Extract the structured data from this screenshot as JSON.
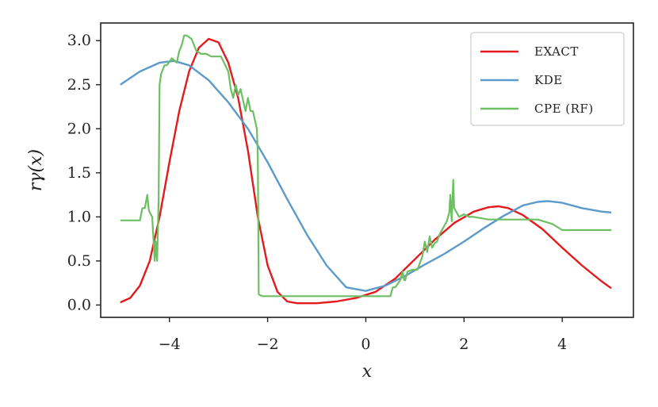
{
  "chart_data": {
    "type": "line",
    "xlabel": "x",
    "ylabel": "rγ(x)",
    "xlim": [
      -5.4,
      5.45
    ],
    "ylim": [
      -0.14,
      3.2
    ],
    "xticks": [
      -4,
      -2,
      0,
      2,
      4
    ],
    "xtick_labels": [
      "−4",
      "−2",
      "0",
      "2",
      "4"
    ],
    "yticks": [
      0.0,
      0.5,
      1.0,
      1.5,
      2.0,
      2.5,
      3.0
    ],
    "ytick_labels": [
      "0.0",
      "0.5",
      "1.0",
      "1.5",
      "2.0",
      "2.5",
      "3.0"
    ],
    "grid": false,
    "legend_position": "top-right",
    "series": [
      {
        "name": "EXACT",
        "color": "#e41a1c",
        "x": [
          -5.0,
          -4.8,
          -4.6,
          -4.4,
          -4.2,
          -4.0,
          -3.8,
          -3.6,
          -3.4,
          -3.2,
          -3.0,
          -2.8,
          -2.6,
          -2.4,
          -2.2,
          -2.0,
          -1.8,
          -1.6,
          -1.4,
          -1.2,
          -1.0,
          -0.6,
          -0.2,
          0.2,
          0.6,
          1.0,
          1.4,
          1.8,
          2.2,
          2.5,
          2.7,
          2.9,
          3.2,
          3.6,
          4.0,
          4.4,
          4.8,
          5.0
        ],
        "y": [
          0.03,
          0.08,
          0.22,
          0.5,
          1.0,
          1.62,
          2.2,
          2.65,
          2.92,
          3.02,
          2.98,
          2.75,
          2.35,
          1.75,
          1.0,
          0.45,
          0.15,
          0.04,
          0.02,
          0.02,
          0.02,
          0.04,
          0.08,
          0.15,
          0.3,
          0.52,
          0.74,
          0.93,
          1.06,
          1.11,
          1.12,
          1.1,
          1.02,
          0.86,
          0.65,
          0.45,
          0.27,
          0.19
        ]
      },
      {
        "name": "KDE",
        "color": "#5b9ac9",
        "x": [
          -5.0,
          -4.6,
          -4.2,
          -3.9,
          -3.6,
          -3.2,
          -2.8,
          -2.4,
          -2.0,
          -1.6,
          -1.2,
          -0.8,
          -0.4,
          0.0,
          0.4,
          0.8,
          1.2,
          1.6,
          2.0,
          2.4,
          2.8,
          3.2,
          3.5,
          3.7,
          4.0,
          4.4,
          4.8,
          5.0
        ],
        "y": [
          2.5,
          2.65,
          2.75,
          2.77,
          2.72,
          2.55,
          2.3,
          2.0,
          1.62,
          1.2,
          0.8,
          0.45,
          0.2,
          0.16,
          0.22,
          0.33,
          0.46,
          0.58,
          0.72,
          0.87,
          1.01,
          1.13,
          1.17,
          1.18,
          1.16,
          1.1,
          1.06,
          1.05
        ]
      },
      {
        "name": "CPE (RF)",
        "color": "#6dbf64",
        "x": [
          -5.0,
          -4.6,
          -4.55,
          -4.5,
          -4.45,
          -4.42,
          -4.4,
          -4.35,
          -4.32,
          -4.3,
          -4.28,
          -4.25,
          -4.22,
          -4.2,
          -4.17,
          -4.15,
          -4.1,
          -4.05,
          -3.95,
          -3.85,
          -3.8,
          -3.75,
          -3.7,
          -3.65,
          -3.55,
          -3.45,
          -3.35,
          -3.25,
          -3.15,
          -3.05,
          -2.95,
          -2.8,
          -2.75,
          -2.7,
          -2.65,
          -2.6,
          -2.55,
          -2.5,
          -2.45,
          -2.4,
          -2.35,
          -2.3,
          -2.22,
          -2.2,
          -2.18,
          -2.15,
          -2.1,
          -1.5,
          -1.0,
          -0.5,
          0.0,
          0.5,
          0.55,
          0.6,
          0.7,
          0.75,
          0.78,
          0.8,
          0.85,
          0.95,
          1.05,
          1.15,
          1.2,
          1.25,
          1.3,
          1.35,
          1.4,
          1.45,
          1.5,
          1.55,
          1.6,
          1.65,
          1.7,
          1.72,
          1.75,
          1.78,
          1.8,
          1.85,
          1.9,
          2.0,
          2.1,
          2.2,
          2.5,
          3.0,
          3.5,
          3.8,
          4.0,
          4.5,
          5.0
        ],
        "y": [
          0.96,
          0.96,
          1.1,
          1.1,
          1.25,
          1.08,
          1.05,
          1.0,
          0.7,
          0.5,
          0.72,
          0.5,
          1.2,
          2.5,
          2.62,
          2.65,
          2.72,
          2.72,
          2.8,
          2.75,
          2.88,
          2.95,
          3.06,
          3.06,
          3.02,
          2.88,
          2.85,
          2.85,
          2.82,
          2.82,
          2.82,
          2.65,
          2.45,
          2.35,
          2.5,
          2.38,
          2.45,
          2.32,
          2.2,
          2.35,
          2.2,
          2.2,
          2.0,
          1.7,
          0.12,
          0.11,
          0.1,
          0.1,
          0.1,
          0.1,
          0.1,
          0.1,
          0.2,
          0.2,
          0.28,
          0.38,
          0.28,
          0.28,
          0.38,
          0.4,
          0.4,
          0.55,
          0.72,
          0.6,
          0.78,
          0.65,
          0.7,
          0.72,
          0.8,
          0.85,
          0.9,
          0.95,
          1.05,
          1.25,
          0.95,
          1.42,
          1.1,
          1.05,
          1.0,
          1.03,
          1.0,
          1.0,
          0.97,
          0.97,
          0.97,
          0.92,
          0.85,
          0.85,
          0.85
        ]
      }
    ]
  }
}
